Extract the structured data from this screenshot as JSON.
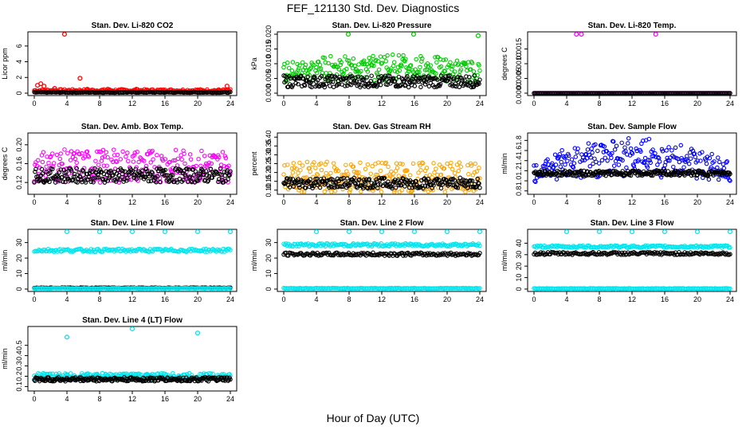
{
  "figure": {
    "title": "FEF_121130  Std. Dev. Diagnostics",
    "xlabel": "Hour of Day (UTC)"
  },
  "chart_data": [
    {
      "type": "scatter",
      "title": "Stan. Dev. Li-820 CO2",
      "ylabel": "Licor ppm",
      "xticks": [
        0,
        4,
        8,
        12,
        16,
        20,
        24
      ],
      "yticks": [
        "0",
        "2",
        "4",
        "6"
      ],
      "xlim": [
        0,
        24
      ],
      "ylim": [
        0,
        7.5
      ],
      "series": [
        {
          "color": "#ff0000",
          "values": {
            "base": 0.35,
            "spread": 0.15,
            "outliers": [
              [
                3.7,
                7.5
              ],
              [
                0.4,
                1.0
              ],
              [
                1.2,
                0.9
              ],
              [
                2.5,
                0.6
              ],
              [
                5.6,
                1.9
              ],
              [
                0.8,
                1.2
              ],
              [
                6.5,
                0.5
              ],
              [
                9,
                0.5
              ],
              [
                12.5,
                0.5
              ],
              [
                16,
                0.4
              ],
              [
                20,
                0.4
              ],
              [
                23.6,
                0.9
              ]
            ]
          }
        },
        {
          "color": "#000000",
          "values": {
            "base": 0.1,
            "spread": 0.05
          }
        }
      ],
      "grid": false
    },
    {
      "type": "scatter",
      "title": "Stan. Dev. Li-820 Pressure",
      "ylabel": "kPa",
      "xticks": [
        0,
        4,
        8,
        12,
        16,
        20,
        24
      ],
      "yticks": [
        "0.000",
        "0.005",
        "0.010",
        "0.015",
        "0.020"
      ],
      "xlim": [
        0,
        24
      ],
      "ylim": [
        0,
        0.02
      ],
      "series": [
        {
          "color": "#00cc00",
          "values": {
            "base": 0.007,
            "peak": 0.01,
            "spread": 0.0035,
            "outliers": [
              [
                7.9,
                0.02
              ],
              [
                15.9,
                0.02
              ],
              [
                23.8,
                0.0195
              ]
            ]
          }
        },
        {
          "color": "#000000",
          "values": {
            "base": 0.004,
            "spread": 0.002
          }
        }
      ],
      "grid": false
    },
    {
      "type": "scatter",
      "title": "Stan. Dev. Li-820 Temp.",
      "ylabel": "degrees C",
      "xticks": [
        0,
        4,
        8,
        12,
        16,
        20,
        24
      ],
      "yticks": [
        "0.0000",
        "0.0005",
        "0.0010",
        "0.0015"
      ],
      "xlim": [
        0,
        24
      ],
      "ylim": [
        0,
        0.002
      ],
      "series": [
        {
          "color": "#ff00ff",
          "values": {
            "base": 0.0,
            "spread": 0.0,
            "outliers": [
              [
                5.2,
                0.002
              ],
              [
                5.8,
                0.002
              ],
              [
                14.9,
                0.002
              ]
            ]
          }
        },
        {
          "color": "#000000",
          "values": {
            "base": 0.0,
            "spread": 0.0
          }
        }
      ],
      "grid": false
    },
    {
      "type": "scatter",
      "title": "Stan. Dev. Amb. Box Temp.",
      "ylabel": "degrees C",
      "xticks": [
        0,
        4,
        8,
        12,
        16,
        20,
        24
      ],
      "yticks": [
        "0.12",
        "0.16",
        "0.20"
      ],
      "xlim": [
        0,
        24
      ],
      "ylim": [
        0.1,
        0.22
      ],
      "series": [
        {
          "color": "#ff00ff",
          "values": {
            "base": 0.155,
            "spread": 0.035
          }
        },
        {
          "color": "#000000",
          "values": {
            "base": 0.135,
            "spread": 0.015
          }
        }
      ],
      "grid": false
    },
    {
      "type": "scatter",
      "title": "Stan. Dev. Gas Stream RH",
      "ylabel": "percent",
      "xticks": [
        0,
        4,
        8,
        12,
        16,
        20,
        24
      ],
      "yticks": [
        "0.10",
        "0.15",
        "0.20",
        "0.25",
        "0.30",
        "0.35",
        "0.40"
      ],
      "xlim": [
        0,
        24
      ],
      "ylim": [
        0.09,
        0.41
      ],
      "series": [
        {
          "color": "#ffa500",
          "values": {
            "base": 0.17,
            "spread": 0.09
          }
        },
        {
          "color": "#000000",
          "values": {
            "base": 0.14,
            "spread": 0.03
          }
        }
      ],
      "grid": false
    },
    {
      "type": "scatter",
      "title": "Stan. Dev. Sample Flow",
      "ylabel": "ml/min",
      "xticks": [
        0,
        4,
        8,
        12,
        16,
        20,
        24
      ],
      "yticks": [
        "0.8",
        "1.0",
        "1.2",
        "1.4",
        "1.6",
        "1.8"
      ],
      "xlim": [
        0,
        24
      ],
      "ylim": [
        0.78,
        1.9
      ],
      "series": [
        {
          "color": "#0000ff",
          "values": {
            "base": 1.2,
            "peak": 1.6,
            "spread": 0.25
          }
        },
        {
          "color": "#000000",
          "values": {
            "base": 1.15,
            "spread": 0.05
          }
        }
      ],
      "grid": false
    },
    {
      "type": "scatter",
      "title": "Stan. Dev. Line 1 Flow",
      "ylabel": "ml/min",
      "xticks": [
        0,
        4,
        8,
        12,
        16,
        20,
        24
      ],
      "yticks": [
        "0",
        "10",
        "20",
        "30"
      ],
      "xlim": [
        0,
        24
      ],
      "ylim": [
        0,
        37
      ],
      "series": [
        {
          "color": "#00e5ee",
          "values": {
            "base": 25,
            "spread": 1,
            "outliers": [
              [
                4,
                37
              ],
              [
                8,
                37
              ],
              [
                12,
                37
              ],
              [
                16,
                37
              ],
              [
                20,
                37
              ],
              [
                24,
                37
              ]
            ]
          }
        },
        {
          "color": "#000000",
          "values": {
            "base": 0.8,
            "spread": 0.2
          }
        },
        {
          "color": "#00e5ee",
          "values": {
            "base": 0.5,
            "spread": 0.2
          }
        }
      ],
      "grid": false
    },
    {
      "type": "scatter",
      "title": "Stan. Dev. Line 2 Flow",
      "ylabel": "ml/min",
      "xticks": [
        0,
        4,
        8,
        12,
        16,
        20,
        24
      ],
      "yticks": [
        "0",
        "10",
        "20",
        "30"
      ],
      "xlim": [
        0,
        24
      ],
      "ylim": [
        0,
        37
      ],
      "series": [
        {
          "color": "#00e5ee",
          "values": {
            "base": 28.5,
            "spread": 1,
            "outliers": [
              [
                4,
                37
              ],
              [
                8,
                37
              ],
              [
                12,
                37
              ],
              [
                16,
                37
              ],
              [
                20,
                37
              ],
              [
                24,
                37
              ]
            ]
          }
        },
        {
          "color": "#000000",
          "values": {
            "base": 22.5,
            "spread": 1
          }
        },
        {
          "color": "#00e5ee",
          "values": {
            "base": 0.5,
            "spread": 0.2
          }
        }
      ],
      "grid": false
    },
    {
      "type": "scatter",
      "title": "Stan. Dev. Line 3 Flow",
      "ylabel": "ml/min",
      "xticks": [
        0,
        4,
        8,
        12,
        16,
        20,
        24
      ],
      "yticks": [
        "0",
        "10",
        "20",
        "30",
        "40"
      ],
      "xlim": [
        0,
        24
      ],
      "ylim": [
        0,
        50
      ],
      "series": [
        {
          "color": "#00e5ee",
          "values": {
            "base": 37,
            "spread": 1,
            "outliers": [
              [
                4,
                50
              ],
              [
                8,
                50
              ],
              [
                12,
                50
              ],
              [
                16,
                50
              ],
              [
                20,
                50
              ],
              [
                24,
                50
              ]
            ]
          }
        },
        {
          "color": "#000000",
          "values": {
            "base": 31,
            "spread": 1.2
          }
        },
        {
          "color": "#00e5ee",
          "values": {
            "base": 0.5,
            "spread": 0.2
          }
        }
      ],
      "grid": false
    },
    {
      "type": "scatter",
      "title": "Stan. Dev. Line 4 (LT) Flow",
      "ylabel": "ml/min",
      "xticks": [
        0,
        4,
        8,
        12,
        16,
        20,
        24
      ],
      "yticks": [
        "0.1",
        "0.2",
        "0.3",
        "0.4",
        "0.5"
      ],
      "xlim": [
        0,
        24
      ],
      "ylim": [
        0.08,
        0.66
      ],
      "series": [
        {
          "color": "#00e5ee",
          "values": {
            "base": 0.2,
            "spread": 0.03,
            "outliers": [
              [
                4,
                0.58
              ],
              [
                12,
                0.66
              ],
              [
                20,
                0.62
              ]
            ]
          }
        },
        {
          "color": "#000000",
          "values": {
            "base": 0.17,
            "spread": 0.02
          }
        }
      ],
      "grid": false
    }
  ]
}
